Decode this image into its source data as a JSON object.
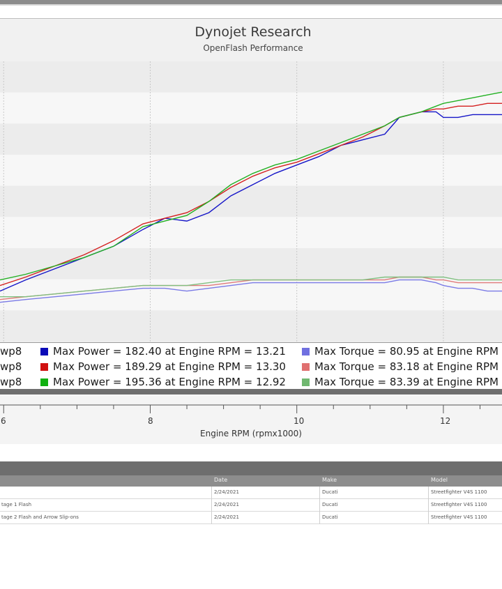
{
  "chart_data": {
    "type": "line",
    "title": "Dynojet Research",
    "subtitle": "OpenFlash Performance",
    "xlabel": "Engine RPM (rpmx1000)",
    "x_ticks": [
      "6",
      "8",
      "10",
      "12"
    ],
    "xlim": [
      5.95,
      12.8
    ],
    "ylim": [
      0,
      100
    ],
    "grid": true,
    "series": [
      {
        "name": "Max Power = 182.40 at Engine RPM = 13.21",
        "color": "#1515c8",
        "kind": "power",
        "x": [
          5.95,
          6.3,
          6.7,
          7.1,
          7.5,
          7.9,
          8.2,
          8.5,
          8.8,
          9.1,
          9.4,
          9.7,
          10.0,
          10.3,
          10.6,
          10.9,
          11.2,
          11.4,
          11.7,
          11.9,
          12.0,
          12.2,
          12.4,
          12.6,
          12.8
        ],
        "y": [
          18,
          22,
          26,
          30,
          34,
          40,
          44,
          43,
          46,
          52,
          56,
          60,
          63,
          66,
          70,
          72,
          74,
          80,
          82,
          82,
          80,
          80,
          81,
          81,
          81
        ]
      },
      {
        "name": "Max Power = 189.29 at Engine RPM = 13.30",
        "color": "#d42020",
        "kind": "power",
        "x": [
          5.95,
          6.3,
          6.7,
          7.1,
          7.5,
          7.9,
          8.2,
          8.5,
          8.8,
          9.1,
          9.4,
          9.7,
          10.0,
          10.3,
          10.6,
          10.9,
          11.2,
          11.4,
          11.7,
          11.9,
          12.0,
          12.2,
          12.4,
          12.6,
          12.8
        ],
        "y": [
          20,
          23,
          27,
          31,
          36,
          42,
          44,
          46,
          50,
          55,
          59,
          62,
          64,
          67,
          70,
          73,
          77,
          80,
          82,
          83,
          83,
          84,
          84,
          85,
          85
        ]
      },
      {
        "name": "Max Power = 195.36 at Engine RPM = 12.92",
        "color": "#22b022",
        "kind": "power",
        "x": [
          5.95,
          6.3,
          6.7,
          7.1,
          7.5,
          7.9,
          8.2,
          8.5,
          8.8,
          9.1,
          9.4,
          9.7,
          10.0,
          10.3,
          10.6,
          10.9,
          11.2,
          11.4,
          11.7,
          11.9,
          12.0,
          12.2,
          12.4,
          12.6,
          12.8
        ],
        "y": [
          22,
          24,
          27,
          30,
          34,
          41,
          43,
          45,
          50,
          56,
          60,
          63,
          65,
          68,
          71,
          74,
          77,
          80,
          82,
          84,
          85,
          86,
          87,
          88,
          89
        ]
      },
      {
        "name": "Max Torque = 80.95 at Engine RPM",
        "color": "#7a7ae6",
        "kind": "torque",
        "x": [
          5.95,
          6.3,
          6.7,
          7.1,
          7.5,
          7.9,
          8.2,
          8.5,
          8.8,
          9.1,
          9.4,
          9.7,
          10.0,
          10.3,
          10.6,
          10.9,
          11.2,
          11.4,
          11.7,
          11.9,
          12.0,
          12.2,
          12.4,
          12.6,
          12.8
        ],
        "y": [
          14,
          15,
          16,
          17,
          18,
          19,
          19,
          18,
          19,
          20,
          21,
          21,
          21,
          21,
          21,
          21,
          21,
          22,
          22,
          21,
          20,
          19,
          19,
          18,
          18
        ]
      },
      {
        "name": "Max Torque = 83.18 at Engine RPM",
        "color": "#e07a7a",
        "kind": "torque",
        "x": [
          5.95,
          6.3,
          6.7,
          7.1,
          7.5,
          7.9,
          8.2,
          8.5,
          8.8,
          9.1,
          9.4,
          9.7,
          10.0,
          10.3,
          10.6,
          10.9,
          11.2,
          11.4,
          11.7,
          11.9,
          12.0,
          12.2,
          12.4,
          12.6,
          12.8
        ],
        "y": [
          15,
          16,
          17,
          18,
          19,
          20,
          20,
          20,
          20,
          21,
          22,
          22,
          22,
          22,
          22,
          22,
          22,
          23,
          23,
          22,
          22,
          21,
          21,
          21,
          21
        ]
      },
      {
        "name": "Max Torque = 83.39 at Engine RPM",
        "color": "#80c080",
        "kind": "torque",
        "x": [
          5.95,
          6.3,
          6.7,
          7.1,
          7.5,
          7.9,
          8.2,
          8.5,
          8.8,
          9.1,
          9.4,
          9.7,
          10.0,
          10.3,
          10.6,
          10.9,
          11.2,
          11.4,
          11.7,
          11.9,
          12.0,
          12.2,
          12.4,
          12.6,
          12.8
        ],
        "y": [
          16,
          16,
          17,
          18,
          19,
          20,
          20,
          20,
          21,
          22,
          22,
          22,
          22,
          22,
          22,
          22,
          23,
          23,
          23,
          23,
          23,
          22,
          22,
          22,
          22
        ]
      }
    ]
  },
  "legend": {
    "prefixes": [
      "wp8",
      "wp8",
      "wp8"
    ],
    "power": [
      {
        "label": "Max Power = 182.40 at Engine RPM = 13.21",
        "color": "#0a0ab8"
      },
      {
        "label": "Max Power = 189.29 at Engine RPM = 13.30",
        "color": "#d01010"
      },
      {
        "label": "Max Power = 195.36 at Engine RPM = 12.92",
        "color": "#10b010"
      }
    ],
    "torque": [
      {
        "label": "Max Torque = 80.95 at Engine RPM =",
        "color": "#7070e0"
      },
      {
        "label": "Max Torque = 83.18 at Engine RPM =",
        "color": "#e07070"
      },
      {
        "label": "Max Torque = 83.39 at Engine RPM =",
        "color": "#70b870"
      }
    ]
  },
  "grid_table": {
    "headers": [
      "Date",
      "Make",
      "Model"
    ],
    "rows": [
      {
        "name": "",
        "date": "2/24/2021",
        "make": "Ducati",
        "model": "Streetfighter V4S 1100"
      },
      {
        "name": "tage 1 Flash",
        "date": "2/24/2021",
        "make": "Ducati",
        "model": "Streetfighter V4S 1100"
      },
      {
        "name": "tage 2 Flash and Arrow Slip-ons",
        "date": "2/24/2021",
        "make": "Ducati",
        "model": "Streetfighter V4S 1100"
      }
    ]
  }
}
